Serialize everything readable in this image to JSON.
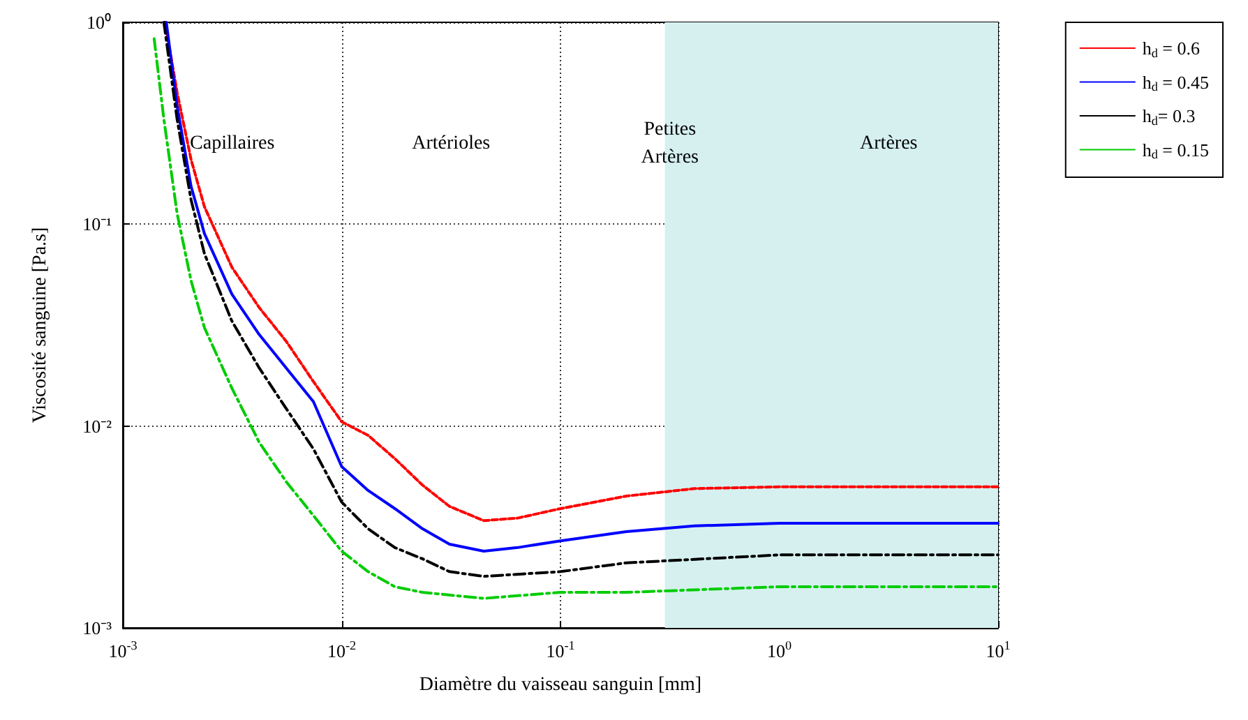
{
  "chart_data": {
    "type": "line",
    "xlabel": "Diamètre du vaisseau sanguin [mm]",
    "ylabel": "Viscosité sanguine [Pa.s]",
    "log": "xy",
    "grid": true,
    "legend": "top right",
    "marker": "none",
    "xlim": [
      0.001,
      10
    ],
    "ylim": [
      0.001,
      1
    ],
    "xticks": [
      {
        "value": 0.001,
        "label": "10$^{-3}$"
      },
      {
        "value": 0.01,
        "label": "10$^{-2}$"
      },
      {
        "value": 0.1,
        "label": "10$^{-1}$"
      },
      {
        "value": 1,
        "label": "10$^{0}$"
      },
      {
        "value": 10,
        "label": "10$^{1}$"
      }
    ],
    "yticks": [
      {
        "value": 0.001,
        "label": "10⁻³"
      },
      {
        "value": 0.01,
        "label": "10⁻²"
      },
      {
        "value": 0.1,
        "label": "10⁻¹"
      },
      {
        "value": 1,
        "label": "10⁰"
      }
    ],
    "bands": [
      {
        "axis": "x",
        "from": 0.3,
        "to": 10,
        "color": "#d6f0f0"
      }
    ],
    "annotations": [
      "Capillaires",
      "Artérioles",
      "Petites\nArtères",
      "Artères"
    ],
    "series": [
      {
        "name": "h$_{d}$ = 0.6",
        "color": "#ff0000",
        "line_style": "dotted",
        "x": [
          0.00156,
          0.00177,
          0.00205,
          0.00236,
          0.00315,
          0.0042,
          0.00558,
          0.00743,
          0.01,
          0.0132,
          0.0175,
          0.0234,
          0.0311,
          0.0446,
          0.0637,
          0.1,
          0.2,
          0.41,
          1,
          3.5,
          10
        ],
        "values": [
          1,
          0.45,
          0.209,
          0.122,
          0.0612,
          0.0386,
          0.0263,
          0.0166,
          0.0105,
          0.009,
          0.0069,
          0.0051,
          0.004,
          0.0034,
          0.0035,
          0.0039,
          0.0045,
          0.0049,
          0.005,
          0.005,
          0.005
        ]
      },
      {
        "name": "h$_{d}$ = 0.45",
        "color": "#0000ff",
        "line_style": "solid",
        "x": [
          0.00158,
          0.00177,
          0.00205,
          0.00236,
          0.00315,
          0.0042,
          0.00558,
          0.00743,
          0.01,
          0.0132,
          0.0175,
          0.0234,
          0.0311,
          0.0446,
          0.0637,
          0.1,
          0.2,
          0.41,
          1,
          10
        ],
        "values": [
          1,
          0.386,
          0.154,
          0.0898,
          0.045,
          0.0284,
          0.0194,
          0.0132,
          0.0063,
          0.0048,
          0.0039,
          0.0031,
          0.0026,
          0.0024,
          0.0025,
          0.0027,
          0.003,
          0.0032,
          0.0033,
          0.0033
        ]
      },
      {
        "name": "h$_{d}$= 0.3",
        "color": "#000000",
        "line_style": "dashed",
        "x": [
          0.00154,
          0.00177,
          0.00205,
          0.00236,
          0.00315,
          0.0042,
          0.00558,
          0.00743,
          0.01,
          0.0132,
          0.0175,
          0.0234,
          0.0311,
          0.0446,
          0.1,
          0.2,
          1,
          10
        ],
        "values": [
          1,
          0.331,
          0.132,
          0.0714,
          0.0331,
          0.0194,
          0.0122,
          0.0077,
          0.0042,
          0.0031,
          0.0025,
          0.0022,
          0.0019,
          0.0018,
          0.0019,
          0.0021,
          0.0023,
          0.0023
        ]
      },
      {
        "name": "h$_{d}$ = 0.15",
        "color": "#00cc00",
        "line_style": "dashed",
        "x": [
          0.00139,
          0.00154,
          0.00177,
          0.00205,
          0.00236,
          0.00315,
          0.0042,
          0.00558,
          0.00743,
          0.01,
          0.0132,
          0.0175,
          0.0234,
          0.0446,
          0.1,
          0.2,
          1,
          10
        ],
        "values": [
          0.83,
          0.331,
          0.113,
          0.0525,
          0.0307,
          0.0154,
          0.0083,
          0.0053,
          0.0036,
          0.0024,
          0.0019,
          0.0016,
          0.0015,
          0.0014,
          0.0015,
          0.0015,
          0.0016,
          0.0016
        ]
      }
    ]
  }
}
